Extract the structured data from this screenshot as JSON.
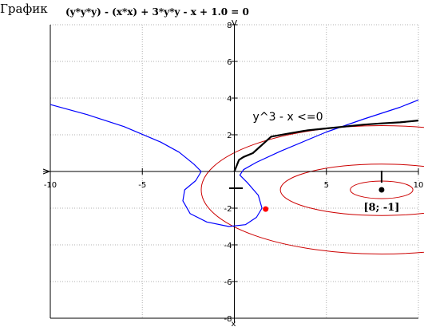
{
  "header": {
    "title": "График",
    "equation": "(y*y*y) - (x*x) + 3*y*y - x + 1.0 = 0"
  },
  "chart_data": {
    "type": "line",
    "title": "",
    "xlabel": "x",
    "ylabel": "",
    "xlim": [
      -10,
      10
    ],
    "ylim": [
      -8,
      8
    ],
    "grid": true,
    "x_ticks": [
      -10,
      -5,
      0,
      5,
      10
    ],
    "y_ticks": [
      -8,
      -6,
      -4,
      -2,
      0,
      2,
      4,
      6,
      8
    ],
    "x_tick_labels": [
      "-10",
      "-5",
      "0",
      "5",
      "10"
    ],
    "y_tick_labels": [
      "-8",
      "-6",
      "-4",
      "-2",
      "0",
      "2",
      "4",
      "6",
      "8"
    ],
    "series": [
      {
        "name": "",
        "color": "#0000ff",
        "points": [
          [
            -10,
            3.65
          ],
          [
            -8,
            3.1
          ],
          [
            -6,
            2.45
          ],
          [
            -4,
            1.6
          ],
          [
            -3,
            1.05
          ],
          [
            -2.2,
            0.4
          ],
          [
            -1.8,
            0
          ],
          [
            -2.1,
            -0.5
          ],
          [
            -2.7,
            -1.0
          ],
          [
            -2.8,
            -1.6
          ],
          [
            -2.4,
            -2.3
          ],
          [
            -1.5,
            -2.75
          ],
          [
            -0.3,
            -3.0
          ],
          [
            0.6,
            -2.9
          ],
          [
            1.2,
            -2.5
          ],
          [
            1.5,
            -2.0
          ],
          [
            1.3,
            -1.3
          ],
          [
            0.7,
            -0.6
          ],
          [
            0.3,
            -0.2
          ],
          [
            0.5,
            0.1
          ],
          [
            1.2,
            0.5
          ],
          [
            2.5,
            1.1
          ],
          [
            5,
            2.15
          ],
          [
            7,
            2.85
          ],
          [
            9,
            3.5
          ],
          [
            10,
            3.9
          ]
        ]
      },
      {
        "name": "y^3 - x <=0",
        "color": "#000000",
        "points": [
          [
            0,
            0
          ],
          [
            0.25,
            0.63
          ],
          [
            0.5,
            0.79
          ],
          [
            1,
            1.0
          ],
          [
            1.5,
            1.45
          ],
          [
            2,
            1.9
          ],
          [
            3,
            2.08
          ],
          [
            4,
            2.25
          ],
          [
            5,
            2.35
          ],
          [
            6,
            2.45
          ],
          [
            7,
            2.55
          ],
          [
            8,
            2.62
          ],
          [
            9,
            2.68
          ],
          [
            10,
            2.78
          ]
        ]
      }
    ],
    "contour": {
      "color": "#cc0000",
      "center": [
        8,
        -1
      ],
      "ellipses": [
        {
          "rx": 1.7,
          "ry": 0.48
        },
        {
          "rx": 5.5,
          "ry": 1.4
        },
        {
          "rx": 9.8,
          "ry": 3.5
        }
      ]
    },
    "annotations": [
      {
        "text": "y^3 - x <=0",
        "x": 1.0,
        "y": 3.0
      }
    ],
    "points": [
      {
        "x": 8,
        "y": -1,
        "label": "[8; -1]",
        "color": "#000000"
      },
      {
        "x": 1.7,
        "y": -2.05,
        "label": "",
        "color": "#ff0000"
      }
    ]
  }
}
